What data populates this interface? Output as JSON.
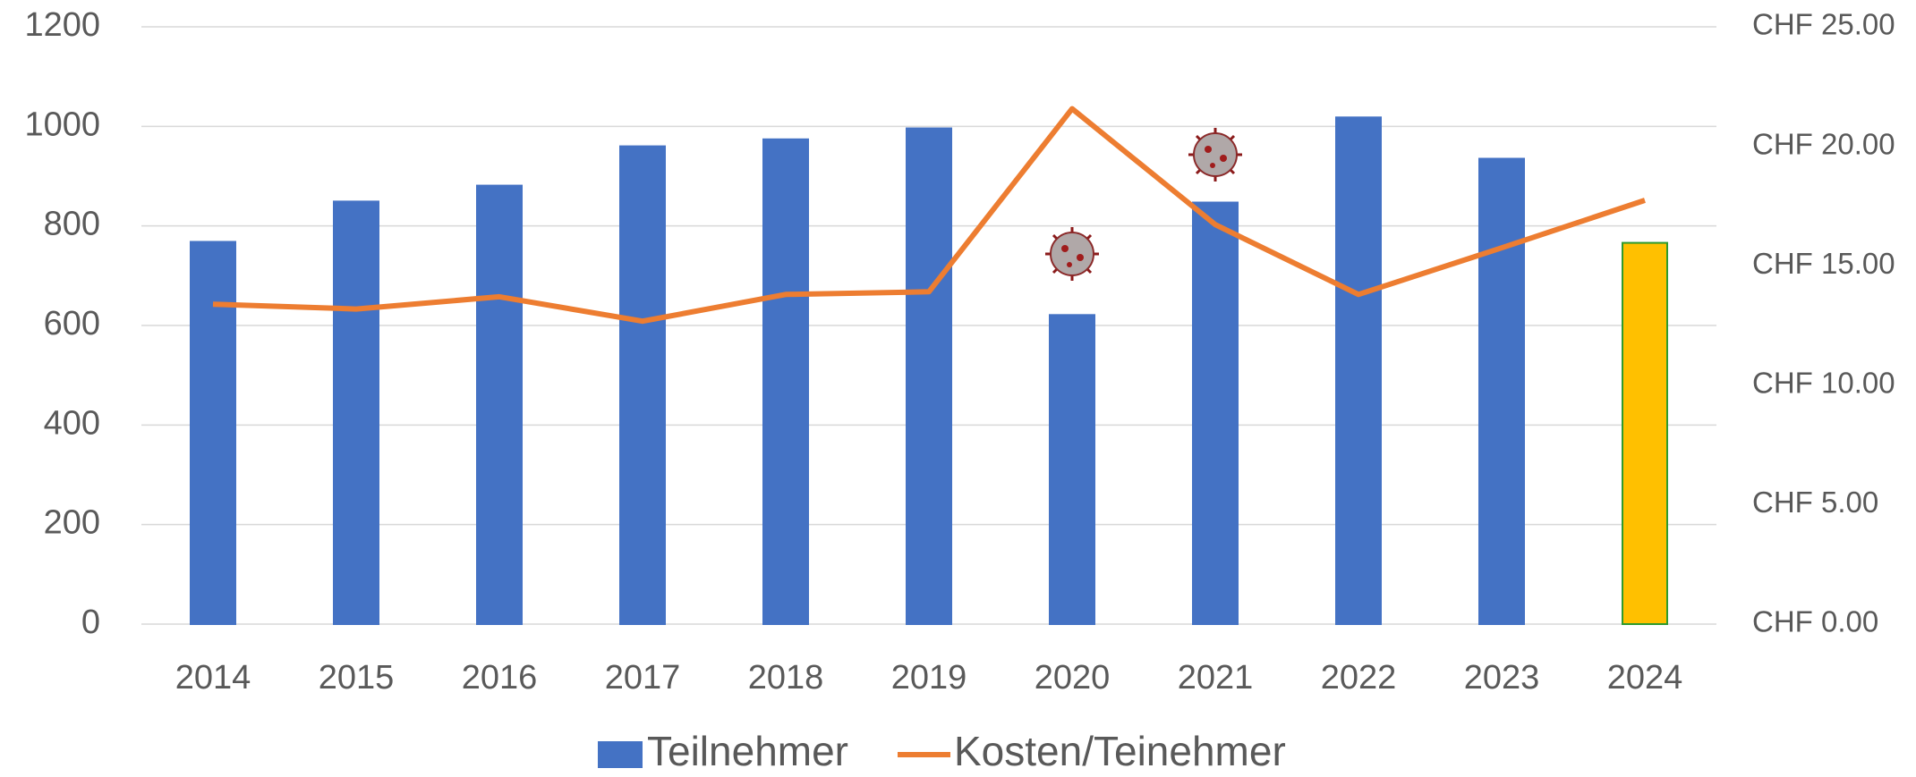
{
  "chart_data": {
    "type": "bar",
    "categories": [
      "2014",
      "2015",
      "2016",
      "2017",
      "2018",
      "2019",
      "2020",
      "2021",
      "2022",
      "2023",
      "2024"
    ],
    "series": [
      {
        "name": "Teilnehmer",
        "type": "bar",
        "color": "#4472c4",
        "colors": [
          "#4472c4",
          "#4472c4",
          "#4472c4",
          "#4472c4",
          "#4472c4",
          "#4472c4",
          "#4472c4",
          "#4472c4",
          "#4472c4",
          "#4472c4",
          "#ffc000"
        ],
        "edgecolors": [
          "#4472c4",
          "#4472c4",
          "#4472c4",
          "#4472c4",
          "#4472c4",
          "#4472c4",
          "#4472c4",
          "#4472c4",
          "#4472c4",
          "#4472c4",
          "#2e9a2e"
        ],
        "values": [
          768,
          849,
          881,
          960,
          974,
          996,
          621,
          847,
          1018,
          935,
          766
        ]
      },
      {
        "name": "Kosten/Teinehmer",
        "type": "line",
        "color": "#ed7d31",
        "axis": "y2",
        "values": [
          13.39,
          13.19,
          13.7,
          12.68,
          13.8,
          13.91,
          21.57,
          16.72,
          13.8,
          15.75,
          17.74
        ]
      }
    ],
    "ylim": [
      0,
      1200
    ],
    "yticks": [
      0,
      200,
      400,
      600,
      800,
      1000,
      1200
    ],
    "y2lim": [
      0,
      25
    ],
    "y2ticks": [
      {
        "value": 0,
        "label": "CHF 0.00"
      },
      {
        "value": 5,
        "label": "CHF 5.00"
      },
      {
        "value": 10,
        "label": "CHF 10.00"
      },
      {
        "value": 15,
        "label": "CHF 15.00"
      },
      {
        "value": 20,
        "label": "CHF 20.00"
      },
      {
        "value": 25,
        "label": "CHF 25.00"
      }
    ],
    "grid": true,
    "legend": "bottom"
  }
}
